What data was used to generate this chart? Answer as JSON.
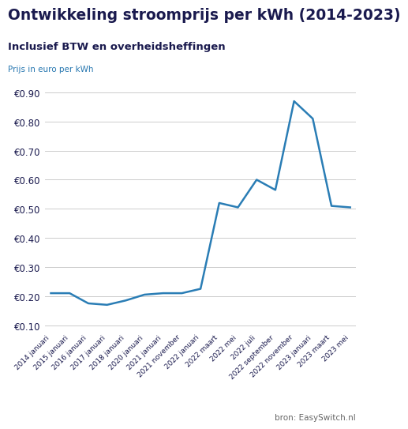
{
  "title": "Ontwikkeling stroomprijs per kWh (2014-2023)",
  "subtitle": "Inclusief BTW en overheidsheffingen",
  "ylabel": "Prijs in euro per kWh",
  "source": "bron: EasySwitch.nl",
  "line_color": "#2A7DB5",
  "background_color": "#ffffff",
  "title_color": "#1a1a4e",
  "ylabel_color": "#2777b0",
  "grid_color": "#cccccc",
  "ylim": [
    0.08,
    0.95
  ],
  "yticks": [
    0.1,
    0.2,
    0.3,
    0.4,
    0.5,
    0.6,
    0.7,
    0.8,
    0.9
  ],
  "x_labels": [
    "2014 januari",
    "2015 januari",
    "2016 januari",
    "2017 januari",
    "2018 januari",
    "2020 januari",
    "2021 januari",
    "2021 november",
    "2022 januari",
    "2022 maart",
    "2022 mei",
    "2022 juli",
    "2022 september",
    "2022 november",
    "2023 januari",
    "2023 maart",
    "2023 mei"
  ],
  "y_values": [
    0.21,
    0.21,
    0.175,
    0.17,
    0.185,
    0.205,
    0.21,
    0.21,
    0.225,
    0.52,
    0.505,
    0.6,
    0.565,
    0.87,
    0.81,
    0.51,
    0.505
  ],
  "line_width": 1.8,
  "title_fontsize": 13.5,
  "subtitle_fontsize": 9.5,
  "ylabel_fontsize": 7.5,
  "xtick_fontsize": 6.5,
  "ytick_fontsize": 8.5,
  "source_fontsize": 7.5
}
